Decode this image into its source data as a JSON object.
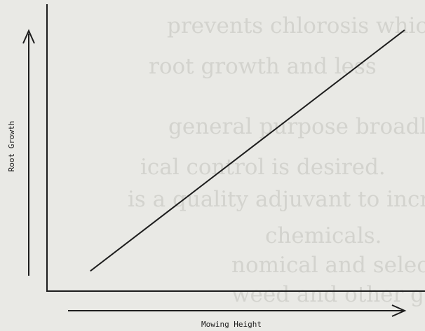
{
  "chart_data": {
    "type": "line",
    "title": "",
    "xlabel": "Mowing Height",
    "ylabel": "Root Growth",
    "xlim": [
      0,
      10
    ],
    "ylim": [
      0,
      10
    ],
    "grid": false,
    "series": [
      {
        "x": [
          1.2,
          9.9
        ],
        "y": [
          0.7,
          9.1
        ]
      }
    ]
  },
  "show_through_text": [
    "prevents chlorosis which results",
    "root growth and less",
    "general purpose broadleaf",
    "ical control is desired.",
    "is a quality adjuvant to increase",
    "chemicals.",
    "nomical and selective post-",
    "weed and other grasses"
  ]
}
